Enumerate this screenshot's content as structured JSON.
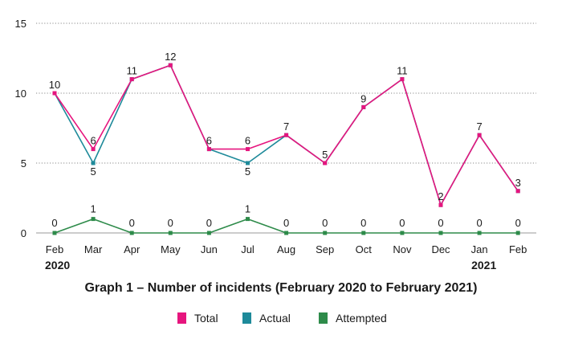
{
  "chart_data": {
    "type": "line",
    "title": "Graph 1 – Number of incidents (February 2020 to February 2021)",
    "xlabel": "",
    "ylabel": "",
    "ylim": [
      0,
      15
    ],
    "yticks": [
      "0",
      "5",
      "10",
      "15"
    ],
    "grid": "horizontal dotted",
    "categories": [
      "Feb",
      "Mar",
      "Apr",
      "May",
      "Jun",
      "Jul",
      "Aug",
      "Sep",
      "Oct",
      "Nov",
      "Dec",
      "Jan",
      "Feb"
    ],
    "year_labels": [
      {
        "index": 0,
        "text": "2020"
      },
      {
        "index": 11,
        "text": "2021"
      }
    ],
    "series": [
      {
        "name": "Total",
        "color": "#e6157e",
        "values": [
          10,
          6,
          11,
          12,
          6,
          6,
          7,
          5,
          9,
          11,
          2,
          7,
          3
        ]
      },
      {
        "name": "Actual",
        "color": "#1e8a9a",
        "values": [
          10,
          5,
          11,
          12,
          6,
          5,
          7,
          5,
          9,
          11,
          2,
          7,
          3
        ]
      },
      {
        "name": "Attempted",
        "color": "#2e8b4a",
        "values": [
          0,
          1,
          0,
          0,
          0,
          1,
          0,
          0,
          0,
          0,
          0,
          0,
          0
        ]
      }
    ],
    "data_labels": {
      "Total": [
        "10",
        "6",
        "11",
        "12",
        "6",
        "6",
        "7",
        "5",
        "9",
        "11",
        "2",
        "7",
        "3"
      ],
      "Actual": [
        "",
        "5",
        "",
        "",
        "",
        "5",
        "",
        "",
        "",
        "",
        "",
        "",
        ""
      ],
      "Attempted": [
        "0",
        "1",
        "0",
        "0",
        "0",
        "1",
        "0",
        "0",
        "0",
        "0",
        "0",
        "0",
        "0"
      ]
    },
    "legend_position": "bottom"
  }
}
